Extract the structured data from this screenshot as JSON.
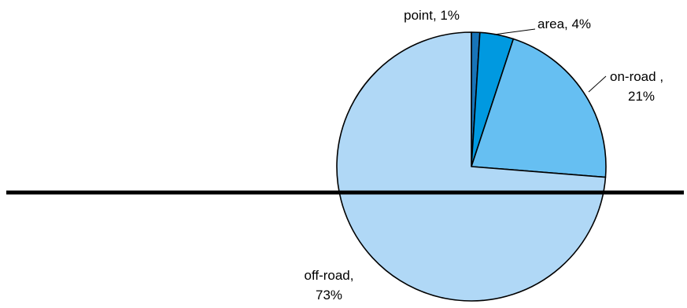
{
  "chart_data": {
    "type": "pie",
    "title": "",
    "slices": [
      {
        "label": "point",
        "value": 1,
        "color": "#1874b8",
        "label_lines": [
          "point, 1%"
        ]
      },
      {
        "label": "area",
        "value": 4,
        "color": "#0099e0",
        "label_lines": [
          "area, 4%"
        ]
      },
      {
        "label": "on-road",
        "value": 21,
        "color": "#66bff2",
        "label_lines": [
          "on-road ,",
          "21%"
        ]
      },
      {
        "label": "off-road",
        "value": 73,
        "color": "#b0d8f6",
        "label_lines": [
          "off-road,",
          "73%"
        ]
      }
    ],
    "start_angle_deg": 0,
    "direction": "clockwise"
  }
}
